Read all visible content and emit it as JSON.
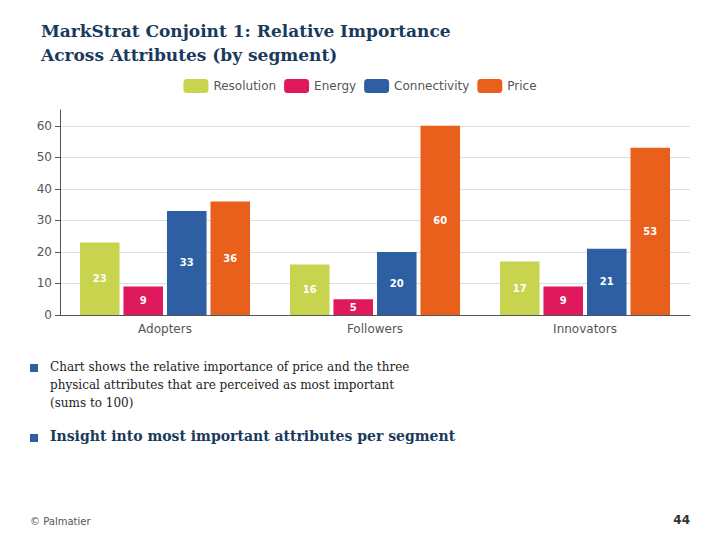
{
  "chart_data": {
    "type": "bar",
    "title": "MarkStrat Conjoint 1: Relative Importance\nAcross Attributes (by segment)",
    "categories": [
      "Adopters",
      "Followers",
      "Innovators"
    ],
    "series": [
      {
        "name": "Resolution",
        "color": "#c8d44e",
        "values": [
          23,
          16,
          17
        ]
      },
      {
        "name": "Energy",
        "color": "#e0185c",
        "values": [
          9,
          5,
          9
        ]
      },
      {
        "name": "Connectivity",
        "color": "#2e5fa3",
        "values": [
          33,
          20,
          21
        ]
      },
      {
        "name": "Price",
        "color": "#e8601c",
        "values": [
          36,
          60,
          53
        ]
      }
    ],
    "ylim": [
      0,
      65
    ],
    "yticks": [
      0,
      10,
      20,
      30,
      40,
      50,
      60
    ],
    "grid": true,
    "legend": "top",
    "data_labels": true,
    "annotations": [
      "Chart shows the relative importance of price and the three\nphysical attributes that are perceived as most important\n(sums to 100)",
      "Insight into most important attributes per segment",
      "© Palmatier",
      "44"
    ]
  }
}
